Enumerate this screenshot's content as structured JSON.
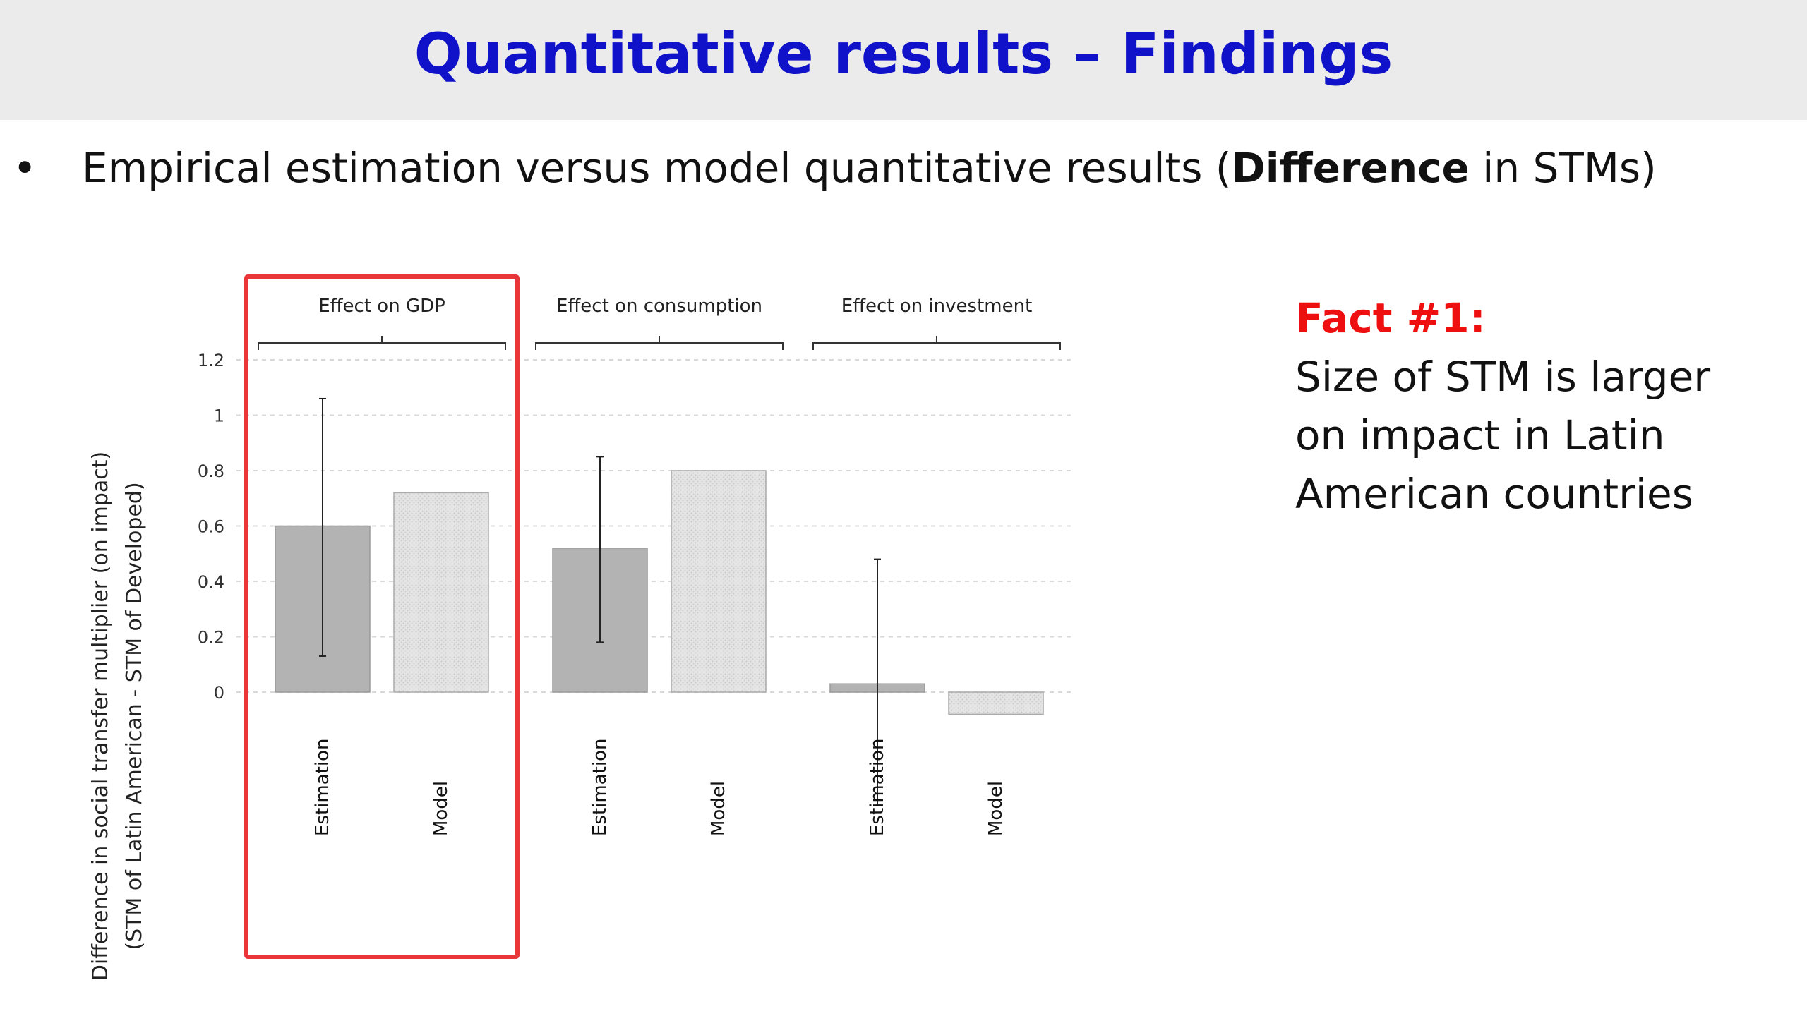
{
  "slide": {
    "title": "Quantitative results – Findings",
    "bullet": {
      "symbol": "•",
      "text_before": "Empirical estimation versus model quantitative results (",
      "text_bold": "Difference",
      "text_after": " in STMs)"
    },
    "fact": {
      "title": "Fact #1:",
      "lines": [
        "Size of STM is larger",
        "on impact in Latin",
        "American countries"
      ]
    }
  },
  "colors": {
    "title": "#0f12c9",
    "fact_title": "#ee1010",
    "highlight_box": "#e8363b",
    "estimation_bar": "#b3b3b3",
    "model_bar": "#e3e3e3"
  },
  "chart_data": {
    "type": "bar",
    "ylabel_lines": [
      "Difference in social transfer multiplier (on impact)",
      "(STM of Latin American  - STM of Developed)"
    ],
    "ylim": [
      -0.42,
      1.2
    ],
    "yticks": [
      "0",
      "0.2",
      "0.4",
      "0.6",
      "0.8",
      "1",
      "1.2"
    ],
    "grid": true,
    "groups": [
      {
        "label": "Effect on GDP",
        "highlighted": true,
        "bars": [
          {
            "category": "Estimation",
            "value": 0.6,
            "error_low": 0.13,
            "error_high": 1.06
          },
          {
            "category": "Model",
            "value": 0.72
          }
        ]
      },
      {
        "label": "Effect on consumption",
        "highlighted": false,
        "bars": [
          {
            "category": "Estimation",
            "value": 0.52,
            "error_low": 0.18,
            "error_high": 0.85
          },
          {
            "category": "Model",
            "value": 0.8
          }
        ]
      },
      {
        "label": "Effect on investment",
        "highlighted": false,
        "bars": [
          {
            "category": "Estimation",
            "value": 0.03,
            "error_low": -0.41,
            "error_high": 0.48
          },
          {
            "category": "Model",
            "value": -0.08
          }
        ]
      }
    ]
  }
}
